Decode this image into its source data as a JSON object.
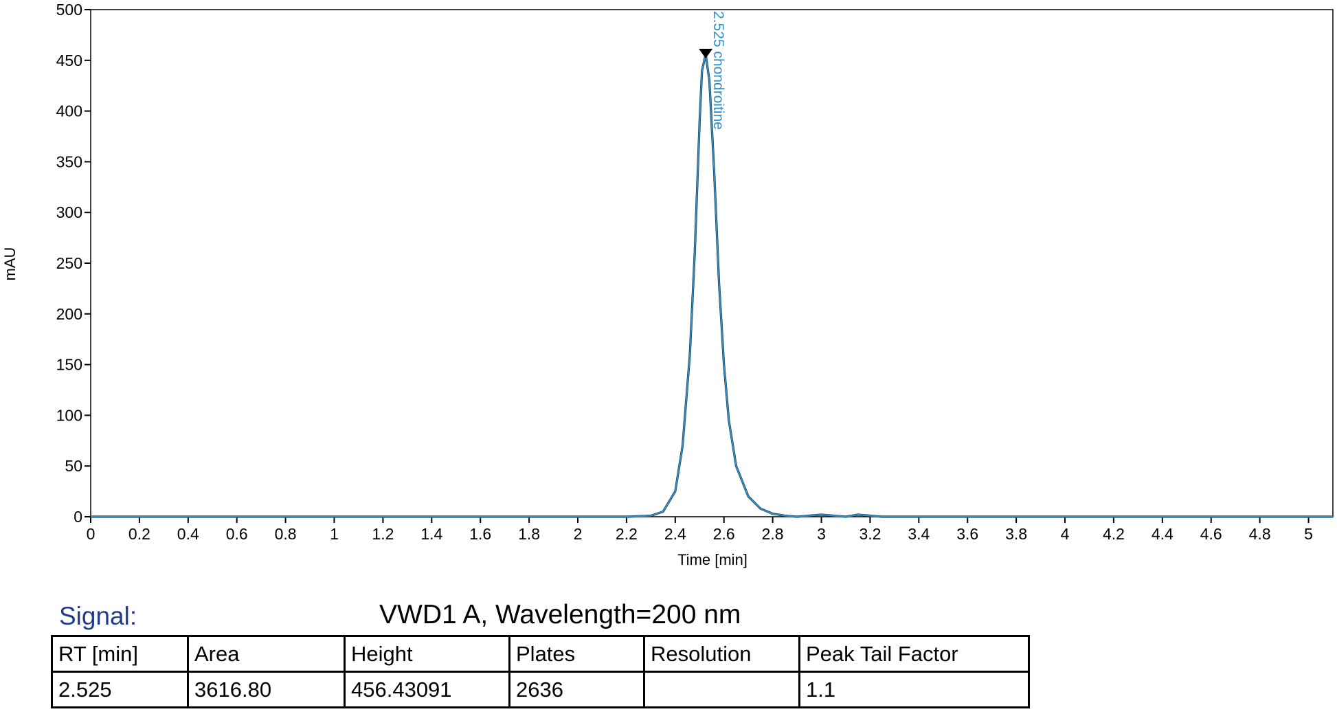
{
  "chart_data": {
    "type": "line",
    "xlabel": "Time [min]",
    "ylabel": "mAU",
    "xlim": [
      0,
      5.1
    ],
    "ylim": [
      0,
      500
    ],
    "x_ticks": [
      0,
      0.2,
      0.4,
      0.6,
      0.8,
      1,
      1.2,
      1.4,
      1.6,
      1.8,
      2,
      2.2,
      2.4,
      2.6,
      2.8,
      3,
      3.2,
      3.4,
      3.6,
      3.8,
      4,
      4.2,
      4.4,
      4.6,
      4.8,
      5
    ],
    "y_ticks": [
      0,
      50,
      100,
      150,
      200,
      250,
      300,
      350,
      400,
      450,
      500
    ],
    "series": [
      {
        "color": "#2f8fc9",
        "x": [
          0,
          2.2,
          2.3,
          2.35,
          2.4,
          2.43,
          2.46,
          2.48,
          2.5,
          2.51,
          2.525,
          2.54,
          2.56,
          2.58,
          2.6,
          2.62,
          2.65,
          2.7,
          2.75,
          2.8,
          2.85,
          2.9,
          3.0,
          3.05,
          3.1,
          3.15,
          3.2,
          3.25,
          5.1
        ],
        "y": [
          0,
          0,
          1,
          5,
          25,
          70,
          160,
          260,
          390,
          440,
          456,
          430,
          340,
          230,
          150,
          95,
          50,
          20,
          8,
          3,
          1,
          0,
          2,
          1,
          0,
          2,
          1,
          0,
          0
        ]
      }
    ],
    "peak": {
      "x": 2.525,
      "y": 456,
      "label": "2.525 chondroitine"
    },
    "grid": false
  },
  "signal": {
    "label": "Signal:",
    "value": "VWD1 A, Wavelength=200 nm"
  },
  "table": {
    "headers": [
      "RT [min]",
      "Area",
      "Height",
      "Plates",
      "Resolution",
      "Peak Tail Factor"
    ],
    "rows": [
      [
        "2.525",
        "3616.80",
        "456.43091",
        "2636",
        "",
        "1.1"
      ]
    ]
  }
}
